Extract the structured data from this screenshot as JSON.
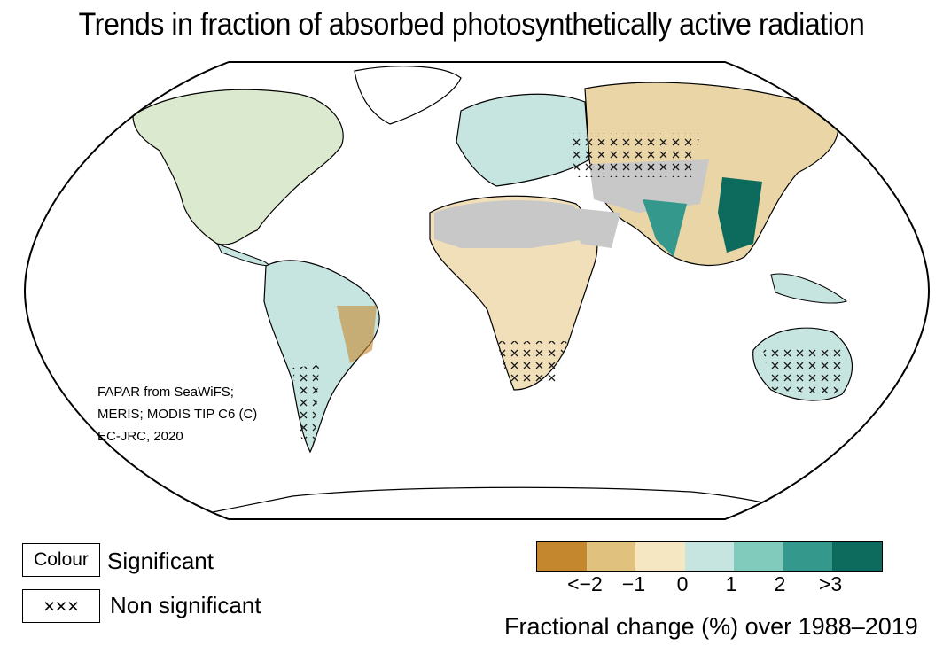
{
  "title": "Trends in fraction of absorbed photosynthetically active radiation",
  "credit": [
    "FAPAR from SeaWiFS;",
    "MERIS; MODIS TIP C6 (C)",
    "EC-JRC, 2020"
  ],
  "legend": {
    "significant_box": "Colour",
    "significant_label": "Significant",
    "nonsig_box": "×××",
    "nonsig_label": "Non significant"
  },
  "colorbar": {
    "title": "Fractional change (%) over 1988–2019",
    "ticks": [
      "<−2",
      "−1",
      "0",
      "1",
      "2",
      ">3"
    ],
    "colors": [
      "#c4872e",
      "#e0c27e",
      "#f5e7c2",
      "#c7e5e0",
      "#80cbbc",
      "#35988c",
      "#0d6b5e"
    ]
  },
  "map_colors": {
    "no_data": "#c8c8c8",
    "ocean": "#ffffff"
  }
}
